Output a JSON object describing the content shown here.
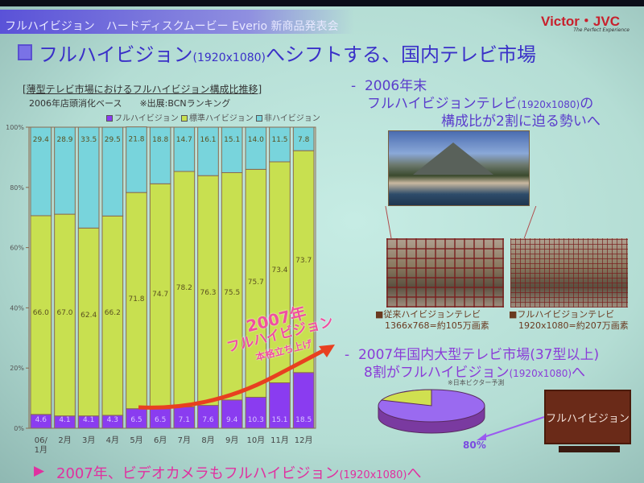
{
  "header": {
    "event_title": "フルハイビジョン　ハードディスクムービー Everio 新商品発表会",
    "logo": "Victor・JVC",
    "logo_tagline": "The Perfect Experience"
  },
  "slide_title": {
    "main": "フルハイビジョン",
    "res": "(1920x1080)",
    "rest": "へシフトする、国内テレビ市場"
  },
  "chart_data": {
    "type": "bar",
    "stacked": true,
    "title": "[薄型テレビ市場におけるフルハイビジョン構成比推移]",
    "subtitle": "2006年店頭消化ベース　　※出展:BCNランキング",
    "categories": [
      "06/1月",
      "2月",
      "3月",
      "4月",
      "5月",
      "6月",
      "7月",
      "8月",
      "9月",
      "10月",
      "11月",
      "12月"
    ],
    "series": [
      {
        "name": "フルハイビジョン",
        "color": "#8a3cf0",
        "values": [
          4.6,
          4.1,
          4.1,
          4.3,
          6.5,
          6.5,
          7.1,
          7.6,
          9.4,
          10.3,
          15.1,
          18.5
        ]
      },
      {
        "name": "標準ハイビジョン",
        "color": "#c8e050",
        "values": [
          66.0,
          67.0,
          62.4,
          66.2,
          71.8,
          74.7,
          78.2,
          76.3,
          75.5,
          75.7,
          73.4,
          73.7
        ]
      },
      {
        "name": "非ハイビジョン",
        "color": "#78d4dc",
        "values": [
          29.4,
          28.9,
          33.5,
          29.5,
          21.8,
          18.8,
          14.7,
          16.1,
          15.1,
          14.0,
          11.5,
          7.8
        ]
      }
    ],
    "yticks": [
      "0%",
      "20%",
      "40%",
      "60%",
      "80%",
      "100%"
    ],
    "ylim": [
      0,
      100
    ],
    "legend": "top-right",
    "annotation": [
      "2007年",
      "フルハイビジョン",
      "本格立ち上げ"
    ]
  },
  "right": {
    "bullet1": {
      "dash": "-",
      "line1": "2006年末",
      "line2a": "フルハイビジョンテレビ",
      "line2b": "(1920x1080)",
      "line2c": "の",
      "line3": "構成比が2割に迫る勢いへ"
    },
    "cap_left": {
      "l1": "■従来ハイビジョンテレビ",
      "l2": "1366x768=約105万画素"
    },
    "cap_right": {
      "l1": "■フルハイビジョンテレビ",
      "l2": "1920x1080=約207万画素"
    },
    "bullet2": {
      "dash": "-",
      "line1": "2007年国内大型テレビ市場(37型以上)",
      "line2a": "8割がフルハイビジョン",
      "line2b": "(1920x1080)",
      "line2c": "へ"
    },
    "note": "※日本ビクター予測",
    "pie": {
      "full_hd_pct": 80,
      "full_color": "#9a6af0",
      "other_color": "#d0e050",
      "label": "80%"
    },
    "tv_label": "フルハイビジョン"
  },
  "bottom": {
    "arrow": "▶",
    "a": "2007年、ビデオカメラもフルハイビジョン",
    "b": "(1920x1080)",
    "c": "へ"
  }
}
